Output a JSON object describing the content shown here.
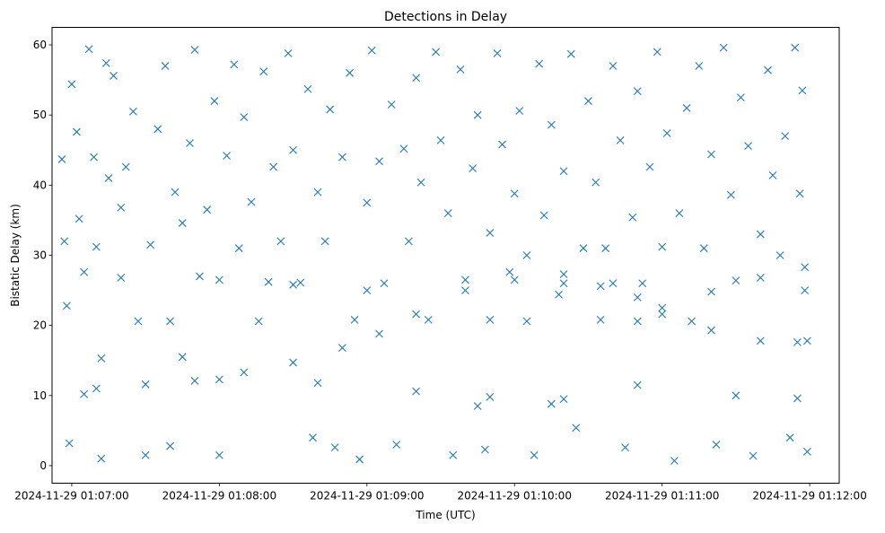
{
  "chart_data": {
    "type": "scatter",
    "title": "Detections in Delay",
    "xlabel": "Time (UTC)",
    "ylabel": "Bistatic Delay (km)",
    "x_is_time": true,
    "x_ticks": [
      "2024-11-29 01:07:00",
      "2024-11-29 01:08:00",
      "2024-11-29 01:09:00",
      "2024-11-29 01:10:00",
      "2024-11-29 01:11:00",
      "2024-11-29 01:12:00"
    ],
    "y_ticks": [
      0,
      10,
      20,
      30,
      40,
      50,
      60
    ],
    "xlim": [
      "2024-11-29 01:06:52",
      "2024-11-29 01:12:12"
    ],
    "ylim": [
      -2.5,
      62.5
    ],
    "grid": false,
    "marker": "x",
    "color": "#1f77b4",
    "series": [
      {
        "points": [
          [
            "2024-11-29 01:06:56",
            43.7
          ],
          [
            "2024-11-29 01:06:57",
            32.0
          ],
          [
            "2024-11-29 01:06:58",
            22.8
          ],
          [
            "2024-11-29 01:06:59",
            3.2
          ],
          [
            "2024-11-29 01:07:00",
            54.4
          ],
          [
            "2024-11-29 01:07:02",
            47.6
          ],
          [
            "2024-11-29 01:07:03",
            35.2
          ],
          [
            "2024-11-29 01:07:05",
            27.6
          ],
          [
            "2024-11-29 01:07:07",
            59.4
          ],
          [
            "2024-11-29 01:07:09",
            44.0
          ],
          [
            "2024-11-29 01:07:10",
            31.2
          ],
          [
            "2024-11-29 01:07:12",
            1.0
          ],
          [
            "2024-11-29 01:07:14",
            57.4
          ],
          [
            "2024-11-29 01:07:15",
            41.0
          ],
          [
            "2024-11-29 01:07:17",
            55.6
          ],
          [
            "2024-11-29 01:07:20",
            36.8
          ],
          [
            "2024-11-29 01:07:22",
            42.6
          ],
          [
            "2024-11-29 01:07:25",
            50.5
          ],
          [
            "2024-11-29 01:07:27",
            20.6
          ],
          [
            "2024-11-29 01:07:30",
            1.5
          ],
          [
            "2024-11-29 01:07:32",
            31.5
          ],
          [
            "2024-11-29 01:07:35",
            48.0
          ],
          [
            "2024-11-29 01:07:38",
            57.0
          ],
          [
            "2024-11-29 01:07:40",
            2.8
          ],
          [
            "2024-11-29 01:07:42",
            39.0
          ],
          [
            "2024-11-29 01:07:45",
            34.6
          ],
          [
            "2024-11-29 01:07:48",
            46.0
          ],
          [
            "2024-11-29 01:07:50",
            59.3
          ],
          [
            "2024-11-29 01:07:52",
            27.0
          ],
          [
            "2024-11-29 01:07:55",
            36.5
          ],
          [
            "2024-11-29 01:07:58",
            52.0
          ],
          [
            "2024-11-29 01:08:00",
            1.5
          ],
          [
            "2024-11-29 01:08:03",
            44.2
          ],
          [
            "2024-11-29 01:08:06",
            57.2
          ],
          [
            "2024-11-29 01:08:08",
            31.0
          ],
          [
            "2024-11-29 01:08:10",
            49.7
          ],
          [
            "2024-11-29 01:08:13",
            37.6
          ],
          [
            "2024-11-29 01:08:16",
            20.6
          ],
          [
            "2024-11-29 01:08:18",
            56.2
          ],
          [
            "2024-11-29 01:08:20",
            26.2
          ],
          [
            "2024-11-29 01:08:22",
            42.6
          ],
          [
            "2024-11-29 01:08:25",
            32.0
          ],
          [
            "2024-11-29 01:08:28",
            58.8
          ],
          [
            "2024-11-29 01:08:30",
            45.0
          ],
          [
            "2024-11-29 01:08:33",
            26.1
          ],
          [
            "2024-11-29 01:08:36",
            53.7
          ],
          [
            "2024-11-29 01:08:38",
            4.0
          ],
          [
            "2024-11-29 01:08:40",
            39.0
          ],
          [
            "2024-11-29 01:08:43",
            32.0
          ],
          [
            "2024-11-29 01:08:45",
            50.8
          ],
          [
            "2024-11-29 01:08:47",
            2.6
          ],
          [
            "2024-11-29 01:08:50",
            44.0
          ],
          [
            "2024-11-29 01:08:53",
            56.0
          ],
          [
            "2024-11-29 01:08:55",
            20.8
          ],
          [
            "2024-11-29 01:08:57",
            0.9
          ],
          [
            "2024-11-29 01:09:00",
            37.5
          ],
          [
            "2024-11-29 01:09:02",
            59.2
          ],
          [
            "2024-11-29 01:09:05",
            43.4
          ],
          [
            "2024-11-29 01:09:07",
            26.0
          ],
          [
            "2024-11-29 01:09:10",
            51.5
          ],
          [
            "2024-11-29 01:09:12",
            3.0
          ],
          [
            "2024-11-29 01:09:15",
            45.2
          ],
          [
            "2024-11-29 01:09:17",
            32.0
          ],
          [
            "2024-11-29 01:09:20",
            55.3
          ],
          [
            "2024-11-29 01:09:22",
            40.4
          ],
          [
            "2024-11-29 01:09:25",
            20.8
          ],
          [
            "2024-11-29 01:09:28",
            59.0
          ],
          [
            "2024-11-29 01:09:30",
            46.4
          ],
          [
            "2024-11-29 01:09:33",
            36.0
          ],
          [
            "2024-11-29 01:09:35",
            1.5
          ],
          [
            "2024-11-29 01:09:38",
            56.5
          ],
          [
            "2024-11-29 01:09:40",
            26.5
          ],
          [
            "2024-11-29 01:09:43",
            42.4
          ],
          [
            "2024-11-29 01:09:45",
            50.0
          ],
          [
            "2024-11-29 01:09:48",
            2.3
          ],
          [
            "2024-11-29 01:09:50",
            33.2
          ],
          [
            "2024-11-29 01:09:53",
            58.8
          ],
          [
            "2024-11-29 01:09:55",
            45.8
          ],
          [
            "2024-11-29 01:09:58",
            27.6
          ],
          [
            "2024-11-29 01:10:00",
            38.8
          ],
          [
            "2024-11-29 01:10:02",
            50.6
          ],
          [
            "2024-11-29 01:10:05",
            20.6
          ],
          [
            "2024-11-29 01:10:08",
            1.5
          ],
          [
            "2024-11-29 01:10:10",
            57.3
          ],
          [
            "2024-11-29 01:10:12",
            35.7
          ],
          [
            "2024-11-29 01:10:15",
            48.6
          ],
          [
            "2024-11-29 01:10:18",
            24.4
          ],
          [
            "2024-11-29 01:10:20",
            42.0
          ],
          [
            "2024-11-29 01:10:23",
            58.7
          ],
          [
            "2024-11-29 01:10:25",
            5.4
          ],
          [
            "2024-11-29 01:10:28",
            31.0
          ],
          [
            "2024-11-29 01:10:30",
            52.0
          ],
          [
            "2024-11-29 01:10:33",
            40.4
          ],
          [
            "2024-11-29 01:10:35",
            20.8
          ],
          [
            "2024-11-29 01:10:37",
            31.0
          ],
          [
            "2024-11-29 01:10:40",
            57.0
          ],
          [
            "2024-11-29 01:10:43",
            46.4
          ],
          [
            "2024-11-29 01:10:45",
            2.6
          ],
          [
            "2024-11-29 01:10:48",
            35.4
          ],
          [
            "2024-11-29 01:10:50",
            53.4
          ],
          [
            "2024-11-29 01:10:52",
            26.0
          ],
          [
            "2024-11-29 01:10:55",
            42.6
          ],
          [
            "2024-11-29 01:10:58",
            59.0
          ],
          [
            "2024-11-29 01:11:00",
            31.2
          ],
          [
            "2024-11-29 01:11:02",
            47.4
          ],
          [
            "2024-11-29 01:11:05",
            0.7
          ],
          [
            "2024-11-29 01:11:07",
            36.0
          ],
          [
            "2024-11-29 01:11:10",
            51.0
          ],
          [
            "2024-11-29 01:11:12",
            20.6
          ],
          [
            "2024-11-29 01:11:15",
            57.0
          ],
          [
            "2024-11-29 01:11:17",
            31.0
          ],
          [
            "2024-11-29 01:11:20",
            44.4
          ],
          [
            "2024-11-29 01:11:22",
            3.0
          ],
          [
            "2024-11-29 01:11:25",
            59.6
          ],
          [
            "2024-11-29 01:11:28",
            38.6
          ],
          [
            "2024-11-29 01:11:30",
            26.4
          ],
          [
            "2024-11-29 01:11:32",
            52.5
          ],
          [
            "2024-11-29 01:11:35",
            45.6
          ],
          [
            "2024-11-29 01:11:37",
            1.4
          ],
          [
            "2024-11-29 01:11:40",
            33.0
          ],
          [
            "2024-11-29 01:11:43",
            56.4
          ],
          [
            "2024-11-29 01:11:45",
            41.4
          ],
          [
            "2024-11-29 01:11:48",
            30.0
          ],
          [
            "2024-11-29 01:11:50",
            47.0
          ],
          [
            "2024-11-29 01:11:52",
            4.0
          ],
          [
            "2024-11-29 01:11:54",
            59.6
          ],
          [
            "2024-11-29 01:11:56",
            38.8
          ],
          [
            "2024-11-29 01:11:57",
            53.5
          ],
          [
            "2024-11-29 01:11:58",
            25.0
          ],
          [
            "2024-11-29 01:11:59",
            17.8
          ],
          [
            "2024-11-29 01:11:59",
            2.0
          ],
          [
            "2024-11-29 01:07:05",
            10.2
          ],
          [
            "2024-11-29 01:07:30",
            11.6
          ],
          [
            "2024-11-29 01:07:50",
            12.1
          ],
          [
            "2024-11-29 01:08:10",
            13.3
          ],
          [
            "2024-11-29 01:08:30",
            14.7
          ],
          [
            "2024-11-29 01:08:50",
            16.8
          ],
          [
            "2024-11-29 01:09:05",
            18.8
          ],
          [
            "2024-11-29 01:09:20",
            21.6
          ],
          [
            "2024-11-29 01:09:40",
            25.0
          ],
          [
            "2024-11-29 01:10:00",
            26.5
          ],
          [
            "2024-11-29 01:10:20",
            26.0
          ],
          [
            "2024-11-29 01:10:40",
            26.0
          ],
          [
            "2024-11-29 01:11:00",
            22.5
          ],
          [
            "2024-11-29 01:11:20",
            24.8
          ],
          [
            "2024-11-29 01:11:40",
            26.8
          ],
          [
            "2024-11-29 01:11:58",
            28.3
          ],
          [
            "2024-11-29 01:11:00",
            21.6
          ],
          [
            "2024-11-29 01:11:20",
            19.3
          ],
          [
            "2024-11-29 01:11:40",
            17.8
          ],
          [
            "2024-11-29 01:11:55",
            17.6
          ],
          [
            "2024-11-29 01:10:05",
            30.0
          ],
          [
            "2024-11-29 01:10:20",
            27.3
          ],
          [
            "2024-11-29 01:10:35",
            25.6
          ],
          [
            "2024-11-29 01:10:50",
            24.0
          ],
          [
            "2024-11-29 01:07:20",
            26.8
          ],
          [
            "2024-11-29 01:08:00",
            26.5
          ],
          [
            "2024-11-29 01:08:30",
            25.8
          ],
          [
            "2024-11-29 01:09:00",
            25.0
          ],
          [
            "2024-11-29 01:07:10",
            11.0
          ],
          [
            "2024-11-29 01:08:00",
            12.3
          ],
          [
            "2024-11-29 01:08:40",
            11.8
          ],
          [
            "2024-11-29 01:09:20",
            10.6
          ],
          [
            "2024-11-29 01:09:50",
            9.8
          ],
          [
            "2024-11-29 01:10:20",
            9.5
          ],
          [
            "2024-11-29 01:10:50",
            11.5
          ],
          [
            "2024-11-29 01:11:30",
            10.0
          ],
          [
            "2024-11-29 01:11:55",
            9.6
          ],
          [
            "2024-11-29 01:07:40",
            20.6
          ],
          [
            "2024-11-29 01:09:50",
            20.8
          ],
          [
            "2024-11-29 01:10:50",
            20.6
          ],
          [
            "2024-11-29 01:07:12",
            15.3
          ],
          [
            "2024-11-29 01:07:45",
            15.5
          ],
          [
            "2024-11-29 01:09:45",
            8.5
          ],
          [
            "2024-11-29 01:10:15",
            8.8
          ]
        ]
      }
    ]
  }
}
